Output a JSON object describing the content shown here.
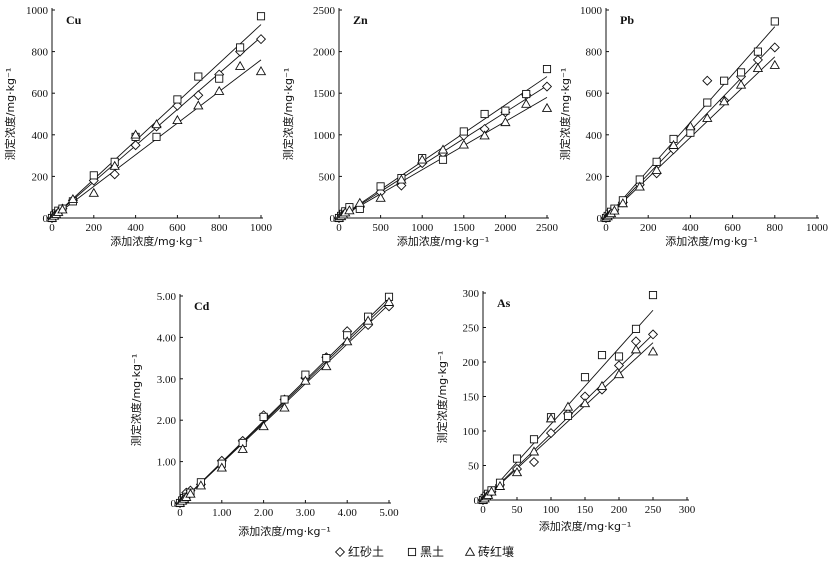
{
  "x_label": "添加浓度/mg·kg⁻¹",
  "y_label": "测定浓度/mg·kg⁻¹",
  "legend": [
    {
      "name": "红砂土",
      "marker": "diamond"
    },
    {
      "name": "黑土",
      "marker": "square"
    },
    {
      "name": "砖红壤",
      "marker": "triangle"
    }
  ],
  "chart_data": [
    {
      "type": "scatter",
      "title": "Cu",
      "xlim": [
        0,
        1000
      ],
      "ylim": [
        0,
        1000
      ],
      "xticks": [
        "0",
        "200",
        "400",
        "600",
        "800",
        "1000"
      ],
      "yticks": [
        "0",
        "200",
        "400",
        "600",
        "800",
        "1000"
      ],
      "series": [
        {
          "name": "红砂土",
          "marker": "diamond",
          "x": [
            0,
            10,
            20,
            30,
            50,
            100,
            200,
            300,
            400,
            500,
            600,
            700,
            800,
            900,
            1000
          ],
          "y": [
            0,
            10,
            20,
            30,
            45,
            85,
            180,
            210,
            350,
            440,
            540,
            590,
            690,
            800,
            860
          ]
        },
        {
          "name": "黑土",
          "marker": "square",
          "x": [
            0,
            10,
            20,
            30,
            50,
            100,
            200,
            300,
            400,
            500,
            600,
            700,
            800,
            900,
            1000
          ],
          "y": [
            0,
            12,
            22,
            35,
            45,
            80,
            205,
            270,
            390,
            390,
            570,
            680,
            670,
            820,
            970
          ]
        },
        {
          "name": "砖红壤",
          "marker": "triangle",
          "x": [
            0,
            10,
            20,
            30,
            50,
            100,
            200,
            300,
            400,
            500,
            600,
            700,
            800,
            900,
            1000
          ],
          "y": [
            0,
            10,
            18,
            28,
            40,
            90,
            120,
            250,
            400,
            450,
            470,
            540,
            610,
            730,
            705
          ]
        }
      ],
      "fits": [
        [
          0,
          0,
          1000,
          870
        ],
        [
          0,
          0,
          1000,
          930
        ],
        [
          0,
          0,
          1000,
          760
        ]
      ]
    },
    {
      "type": "scatter",
      "title": "Zn",
      "xlim": [
        0,
        2500
      ],
      "ylim": [
        0,
        2500
      ],
      "xticks": [
        "0",
        "500",
        "1000",
        "1500",
        "2000",
        "2500"
      ],
      "yticks": [
        "0",
        "500",
        "1000",
        "1500",
        "2000",
        "2500"
      ],
      "series": [
        {
          "name": "红砂土",
          "marker": "diamond",
          "x": [
            0,
            25,
            50,
            75,
            125,
            250,
            500,
            750,
            1000,
            1250,
            1500,
            1750,
            2000,
            2250,
            2500
          ],
          "y": [
            0,
            20,
            45,
            70,
            110,
            130,
            310,
            390,
            660,
            780,
            990,
            1070,
            1270,
            1480,
            1580
          ]
        },
        {
          "name": "黑土",
          "marker": "square",
          "x": [
            0,
            25,
            50,
            75,
            125,
            250,
            500,
            750,
            1000,
            1250,
            1500,
            1750,
            2000,
            2250,
            2500
          ],
          "y": [
            0,
            25,
            50,
            80,
            130,
            110,
            380,
            480,
            720,
            700,
            1040,
            1250,
            1290,
            1490,
            1790
          ]
        },
        {
          "name": "砖红壤",
          "marker": "triangle",
          "x": [
            0,
            25,
            50,
            75,
            125,
            250,
            500,
            750,
            1000,
            1250,
            1500,
            1750,
            2000,
            2250,
            2500
          ],
          "y": [
            0,
            20,
            40,
            65,
            90,
            180,
            240,
            460,
            700,
            820,
            880,
            990,
            1150,
            1370,
            1320
          ]
        }
      ],
      "fits": [
        [
          0,
          0,
          2500,
          1590
        ],
        [
          0,
          0,
          2500,
          1700
        ],
        [
          0,
          0,
          2500,
          1450
        ]
      ]
    },
    {
      "type": "scatter",
      "title": "Pb",
      "xlim": [
        0,
        1000
      ],
      "ylim": [
        0,
        1000
      ],
      "xticks": [
        "0",
        "200",
        "400",
        "600",
        "800",
        "1000"
      ],
      "yticks": [
        "0",
        "200",
        "400",
        "600",
        "800",
        "1000"
      ],
      "series": [
        {
          "name": "红砂土",
          "marker": "diamond",
          "x": [
            0,
            8,
            16,
            24,
            40,
            80,
            160,
            240,
            320,
            400,
            480,
            560,
            640,
            720,
            800
          ],
          "y": [
            0,
            8,
            16,
            25,
            40,
            75,
            160,
            215,
            330,
            430,
            660,
            565,
            680,
            760,
            820
          ]
        },
        {
          "name": "黑土",
          "marker": "square",
          "x": [
            0,
            8,
            16,
            24,
            40,
            80,
            160,
            240,
            320,
            400,
            480,
            560,
            640,
            720,
            800
          ],
          "y": [
            0,
            10,
            20,
            30,
            45,
            85,
            185,
            270,
            380,
            410,
            555,
            660,
            700,
            800,
            945
          ]
        },
        {
          "name": "砖红壤",
          "marker": "triangle",
          "x": [
            0,
            8,
            16,
            24,
            40,
            80,
            160,
            240,
            320,
            400,
            480,
            560,
            640,
            720,
            800
          ],
          "y": [
            0,
            7,
            15,
            22,
            35,
            70,
            150,
            230,
            350,
            440,
            480,
            560,
            640,
            720,
            735
          ]
        }
      ],
      "fits": [
        [
          0,
          0,
          800,
          840
        ],
        [
          0,
          0,
          800,
          920
        ],
        [
          0,
          0,
          800,
          775
        ]
      ]
    },
    {
      "type": "scatter",
      "title": "Cd",
      "xlim": [
        0,
        5
      ],
      "ylim": [
        0,
        5
      ],
      "xticks": [
        "0",
        "1.00",
        "2.00",
        "3.00",
        "4.00",
        "5.00"
      ],
      "yticks": [
        "0",
        "1.00",
        "2.00",
        "3.00",
        "4.00",
        "5.00"
      ],
      "series": [
        {
          "name": "红砂土",
          "marker": "diamond",
          "x": [
            0,
            0.05,
            0.1,
            0.15,
            0.25,
            0.5,
            1.0,
            1.5,
            2.0,
            2.5,
            3.0,
            3.5,
            4.0,
            4.5,
            5.0
          ],
          "y": [
            0,
            0.05,
            0.1,
            0.25,
            0.3,
            0.45,
            1.02,
            1.5,
            2.12,
            2.5,
            3.02,
            3.52,
            4.15,
            4.3,
            4.75
          ]
        },
        {
          "name": "黑土",
          "marker": "square",
          "x": [
            0,
            0.05,
            0.1,
            0.15,
            0.25,
            0.5,
            1.0,
            1.5,
            2.0,
            2.5,
            3.0,
            3.5,
            4.0,
            4.5,
            5.0
          ],
          "y": [
            0,
            0.06,
            0.12,
            0.15,
            0.25,
            0.5,
            0.95,
            1.45,
            2.08,
            2.5,
            3.1,
            3.5,
            4.05,
            4.5,
            4.98
          ]
        },
        {
          "name": "砖红壤",
          "marker": "triangle",
          "x": [
            0,
            0.05,
            0.1,
            0.15,
            0.25,
            0.5,
            1.0,
            1.5,
            2.0,
            2.5,
            3.0,
            3.5,
            4.0,
            4.5,
            5.0
          ],
          "y": [
            0,
            0.05,
            0.1,
            0.14,
            0.22,
            0.42,
            0.85,
            1.3,
            1.85,
            2.3,
            2.95,
            3.3,
            3.9,
            4.4,
            4.85
          ]
        }
      ],
      "fits": [
        [
          0,
          0,
          5,
          4.8
        ],
        [
          0,
          0,
          5,
          4.95
        ],
        [
          0,
          0,
          5,
          4.88
        ]
      ]
    },
    {
      "type": "scatter",
      "title": "As",
      "xlim": [
        0,
        300
      ],
      "ylim": [
        0,
        300
      ],
      "xticks": [
        "0",
        "50",
        "100",
        "150",
        "200",
        "250",
        "300"
      ],
      "yticks": [
        "0",
        "50",
        "100",
        "150",
        "200",
        "250",
        "300"
      ],
      "series": [
        {
          "name": "红砂土",
          "marker": "diamond",
          "x": [
            0,
            2.5,
            5,
            7.5,
            12.5,
            25,
            50,
            75,
            100,
            125,
            150,
            175,
            200,
            225,
            250
          ],
          "y": [
            0,
            2,
            5,
            8,
            12,
            22,
            45,
            55,
            97,
            125,
            150,
            160,
            195,
            230,
            240
          ]
        },
        {
          "name": "黑土",
          "marker": "square",
          "x": [
            0,
            2.5,
            5,
            7.5,
            12.5,
            25,
            50,
            75,
            100,
            125,
            150,
            175,
            200,
            225,
            250
          ],
          "y": [
            0,
            3,
            6,
            9,
            14,
            25,
            60,
            88,
            120,
            122,
            178,
            210,
            208,
            248,
            297
          ]
        },
        {
          "name": "砖红壤",
          "marker": "triangle",
          "x": [
            0,
            2.5,
            5,
            7.5,
            12.5,
            25,
            50,
            75,
            100,
            125,
            150,
            175,
            200,
            225,
            250
          ],
          "y": [
            0,
            2,
            5,
            7,
            12,
            20,
            40,
            70,
            118,
            135,
            140,
            165,
            182,
            218,
            215
          ]
        }
      ],
      "fits": [
        [
          0,
          0,
          250,
          240
        ],
        [
          0,
          0,
          250,
          275
        ],
        [
          0,
          0,
          250,
          228
        ]
      ]
    }
  ]
}
